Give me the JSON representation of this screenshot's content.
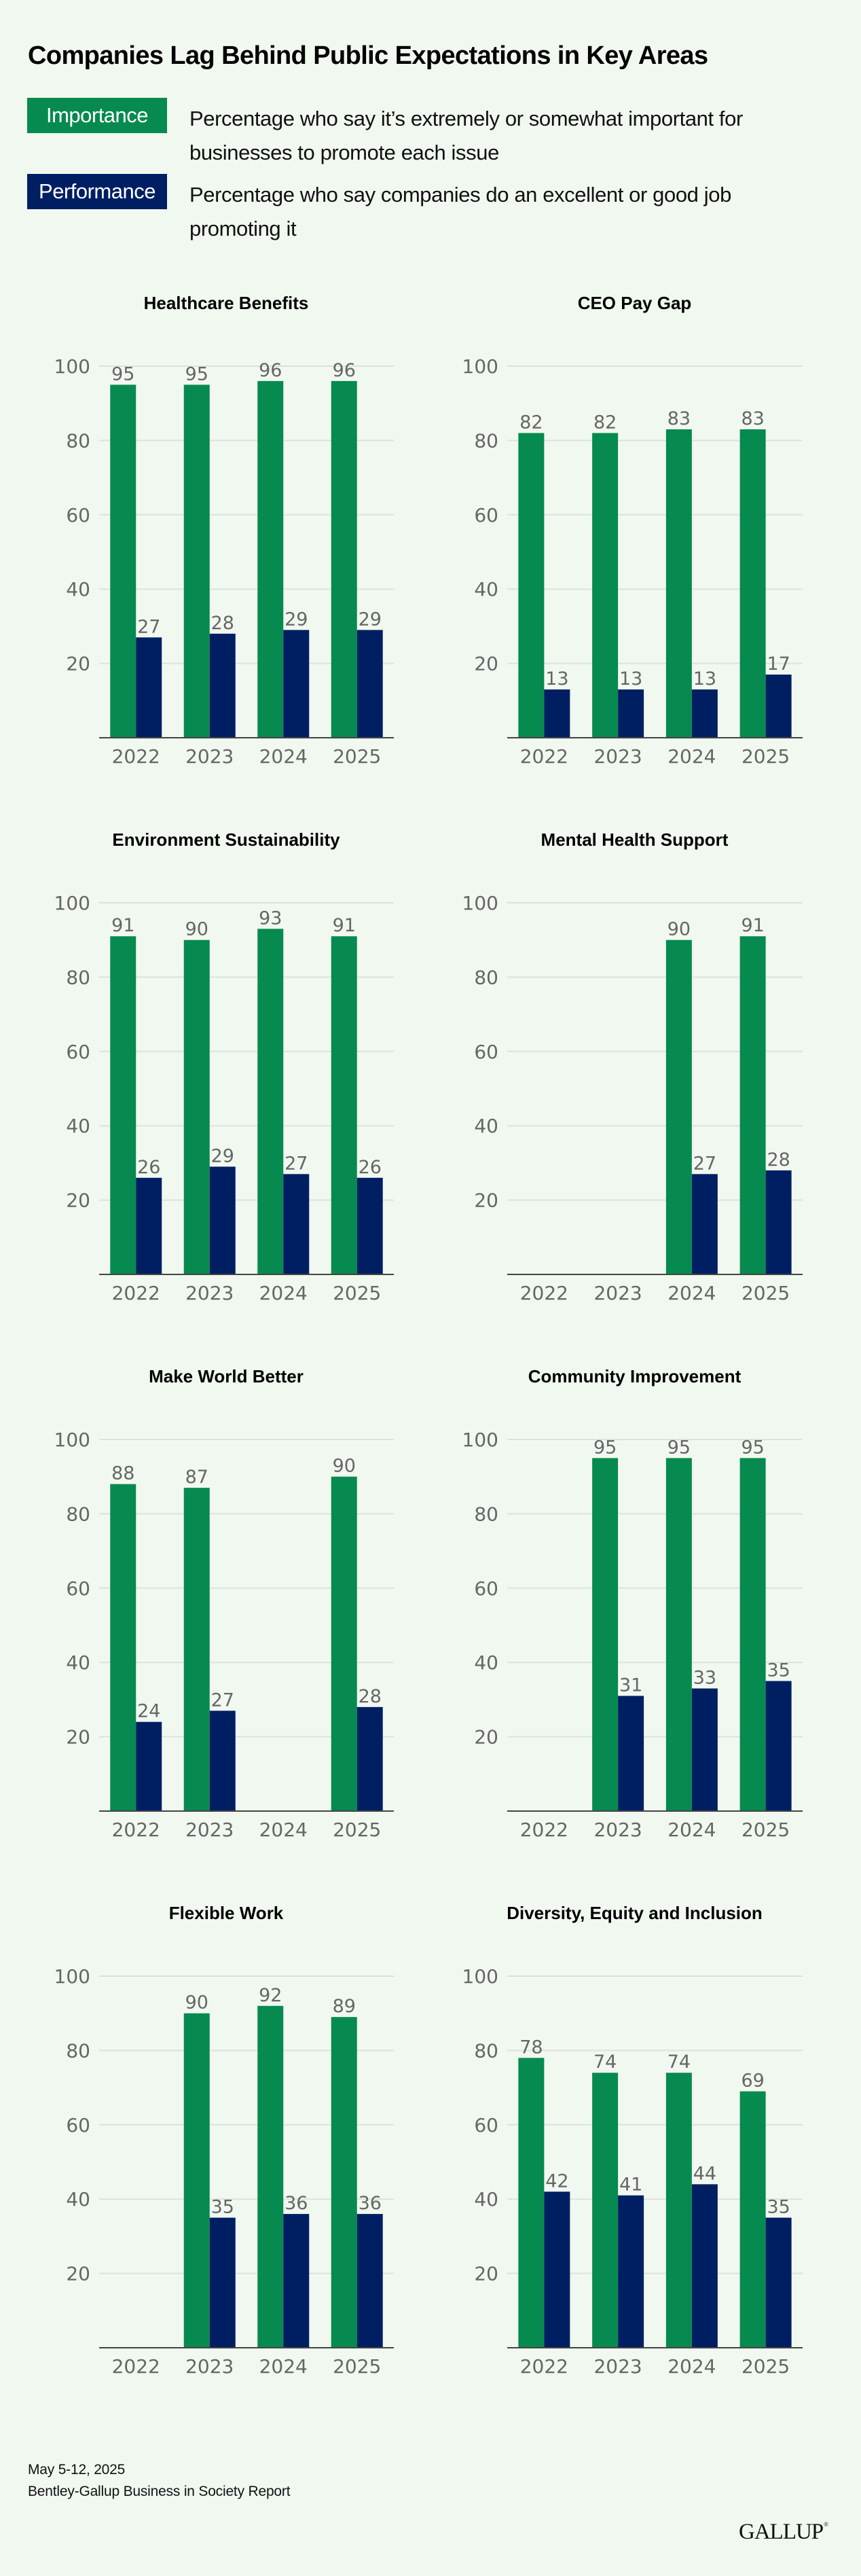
{
  "title": "Companies Lag Behind Public Expectations in Key Areas",
  "legend": [
    {
      "key": "Importance",
      "color": "#078a4f",
      "description": "Percentage who say it’s extremely or somewhat important for businesses to promote each issue"
    },
    {
      "key": "Performance",
      "color": "#001f63",
      "description": "Percentage who say companies do an excellent or good job promoting it"
    }
  ],
  "colors": {
    "importance": "#078a4f",
    "performance": "#001f63",
    "background": "#f1f8f0",
    "gridline": "#dde3dc",
    "axis": "#444444",
    "label": "#666666"
  },
  "chart_data": [
    {
      "type": "bar",
      "title": "Healthcare Benefits",
      "categories": [
        "2022",
        "2023",
        "2024",
        "2025"
      ],
      "ylim": [
        0,
        100
      ],
      "yticks": [
        20,
        40,
        60,
        80,
        100
      ],
      "grid": true,
      "series": [
        {
          "name": "Importance",
          "values": [
            95,
            95,
            96,
            96
          ]
        },
        {
          "name": "Performance",
          "values": [
            27,
            28,
            29,
            29
          ]
        }
      ]
    },
    {
      "type": "bar",
      "title": "CEO Pay Gap",
      "categories": [
        "2022",
        "2023",
        "2024",
        "2025"
      ],
      "ylim": [
        0,
        100
      ],
      "yticks": [
        20,
        40,
        60,
        80,
        100
      ],
      "grid": true,
      "series": [
        {
          "name": "Importance",
          "values": [
            82,
            82,
            83,
            83
          ]
        },
        {
          "name": "Performance",
          "values": [
            13,
            13,
            13,
            17
          ]
        }
      ]
    },
    {
      "type": "bar",
      "title": "Environment Sustainability",
      "categories": [
        "2022",
        "2023",
        "2024",
        "2025"
      ],
      "ylim": [
        0,
        100
      ],
      "yticks": [
        20,
        40,
        60,
        80,
        100
      ],
      "grid": true,
      "series": [
        {
          "name": "Importance",
          "values": [
            91,
            90,
            93,
            91
          ]
        },
        {
          "name": "Performance",
          "values": [
            26,
            29,
            27,
            26
          ]
        }
      ]
    },
    {
      "type": "bar",
      "title": "Mental Health Support",
      "categories": [
        "2022",
        "2023",
        "2024",
        "2025"
      ],
      "ylim": [
        0,
        100
      ],
      "yticks": [
        20,
        40,
        60,
        80,
        100
      ],
      "grid": true,
      "series": [
        {
          "name": "Importance",
          "values": [
            null,
            null,
            90,
            91
          ]
        },
        {
          "name": "Performance",
          "values": [
            null,
            null,
            27,
            28
          ]
        }
      ]
    },
    {
      "type": "bar",
      "title": "Make World Better",
      "categories": [
        "2022",
        "2023",
        "2024",
        "2025"
      ],
      "ylim": [
        0,
        100
      ],
      "yticks": [
        20,
        40,
        60,
        80,
        100
      ],
      "grid": true,
      "series": [
        {
          "name": "Importance",
          "values": [
            88,
            87,
            null,
            90
          ]
        },
        {
          "name": "Performance",
          "values": [
            24,
            27,
            null,
            28
          ]
        }
      ]
    },
    {
      "type": "bar",
      "title": "Community Improvement",
      "categories": [
        "2022",
        "2023",
        "2024",
        "2025"
      ],
      "ylim": [
        0,
        100
      ],
      "yticks": [
        20,
        40,
        60,
        80,
        100
      ],
      "grid": true,
      "series": [
        {
          "name": "Importance",
          "values": [
            null,
            95,
            95,
            95
          ]
        },
        {
          "name": "Performance",
          "values": [
            null,
            31,
            33,
            35
          ]
        }
      ]
    },
    {
      "type": "bar",
      "title": "Flexible Work",
      "categories": [
        "2022",
        "2023",
        "2024",
        "2025"
      ],
      "ylim": [
        0,
        100
      ],
      "yticks": [
        20,
        40,
        60,
        80,
        100
      ],
      "grid": true,
      "series": [
        {
          "name": "Importance",
          "values": [
            null,
            90,
            92,
            89
          ]
        },
        {
          "name": "Performance",
          "values": [
            null,
            35,
            36,
            36
          ]
        }
      ]
    },
    {
      "type": "bar",
      "title": "Diversity, Equity and Inclusion",
      "categories": [
        "2022",
        "2023",
        "2024",
        "2025"
      ],
      "ylim": [
        0,
        100
      ],
      "yticks": [
        20,
        40,
        60,
        80,
        100
      ],
      "grid": true,
      "series": [
        {
          "name": "Importance",
          "values": [
            78,
            74,
            74,
            69
          ]
        },
        {
          "name": "Performance",
          "values": [
            42,
            41,
            44,
            35
          ]
        }
      ]
    }
  ],
  "footer": {
    "date": "May 5-12, 2025",
    "source": "Bentley-Gallup Business in Society Report"
  },
  "logo": {
    "text": "GALLUP",
    "mark": "®"
  }
}
